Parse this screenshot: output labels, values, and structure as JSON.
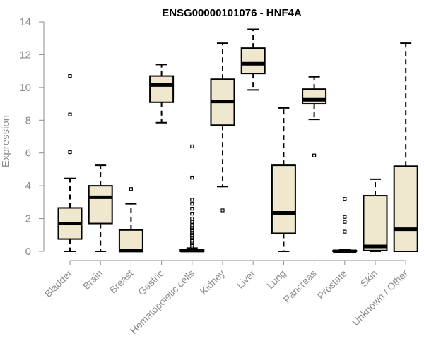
{
  "chart_data": {
    "type": "boxplot",
    "title": "ENSG00000101076 - HNF4A",
    "xlabel": "",
    "ylabel": "Expression",
    "ylim": [
      0,
      14
    ],
    "yticks": [
      0,
      2,
      4,
      6,
      8,
      10,
      12,
      14
    ],
    "grid": false,
    "colors": {
      "box_fill": "#efe8cf",
      "stroke": "#000000",
      "axis": "#8c8c8c",
      "title": "#000000"
    },
    "categories": [
      "Bladder",
      "Brain",
      "Breast",
      "Gastric",
      "Hematopoietic cells",
      "Kidney",
      "Liver",
      "Lung",
      "Pancreas",
      "Prostate",
      "Skin",
      "Unknown / Other"
    ],
    "boxes": [
      {
        "name": "Bladder",
        "whisker_low": 0.0,
        "q1": 0.75,
        "median": 1.7,
        "q3": 2.65,
        "whisker_high": 4.45,
        "outliers": [
          6.05,
          8.35,
          10.7
        ]
      },
      {
        "name": "Brain",
        "whisker_low": 0.0,
        "q1": 1.7,
        "median": 3.3,
        "q3": 4.0,
        "whisker_high": 5.25,
        "outliers": []
      },
      {
        "name": "Breast",
        "whisker_low": 0.0,
        "q1": 0.0,
        "median": 0.05,
        "q3": 1.3,
        "whisker_high": 2.9,
        "outliers": [
          3.8
        ]
      },
      {
        "name": "Gastric",
        "whisker_low": 7.85,
        "q1": 9.1,
        "median": 10.15,
        "q3": 10.7,
        "whisker_high": 11.4,
        "outliers": []
      },
      {
        "name": "Hematopoietic cells",
        "whisker_low": 0.0,
        "q1": 0.0,
        "median": 0.05,
        "q3": 0.1,
        "whisker_high": 0.2,
        "outliers": [
          0.3,
          0.4,
          0.5,
          0.6,
          0.7,
          0.8,
          0.9,
          1.0,
          1.1,
          1.2,
          1.3,
          1.4,
          1.5,
          1.6,
          1.8,
          2.0,
          2.3,
          2.6,
          2.9,
          3.15,
          4.5,
          6.4
        ]
      },
      {
        "name": "Kidney",
        "whisker_low": 3.95,
        "q1": 7.7,
        "median": 9.15,
        "q3": 10.5,
        "whisker_high": 12.7,
        "outliers": [
          2.5
        ]
      },
      {
        "name": "Liver",
        "whisker_low": 9.85,
        "q1": 10.85,
        "median": 11.45,
        "q3": 12.4,
        "whisker_high": 13.55,
        "outliers": []
      },
      {
        "name": "Lung",
        "whisker_low": 0.0,
        "q1": 1.1,
        "median": 2.35,
        "q3": 5.25,
        "whisker_high": 8.75,
        "outliers": []
      },
      {
        "name": "Pancreas",
        "whisker_low": 8.05,
        "q1": 9.0,
        "median": 9.25,
        "q3": 9.9,
        "whisker_high": 10.65,
        "outliers": [
          5.85
        ]
      },
      {
        "name": "Prostate",
        "whisker_low": 0.0,
        "q1": 0.0,
        "median": 0.0,
        "q3": 0.05,
        "whisker_high": 0.1,
        "outliers": [
          1.2,
          1.8,
          2.1,
          3.2
        ]
      },
      {
        "name": "Skin",
        "whisker_low": 0.0,
        "q1": 0.05,
        "median": 0.3,
        "q3": 3.4,
        "whisker_high": 4.4,
        "outliers": []
      },
      {
        "name": "Unknown / Other",
        "whisker_low": 0.0,
        "q1": 0.0,
        "median": 1.35,
        "q3": 5.2,
        "whisker_high": 12.7,
        "outliers": []
      }
    ]
  }
}
